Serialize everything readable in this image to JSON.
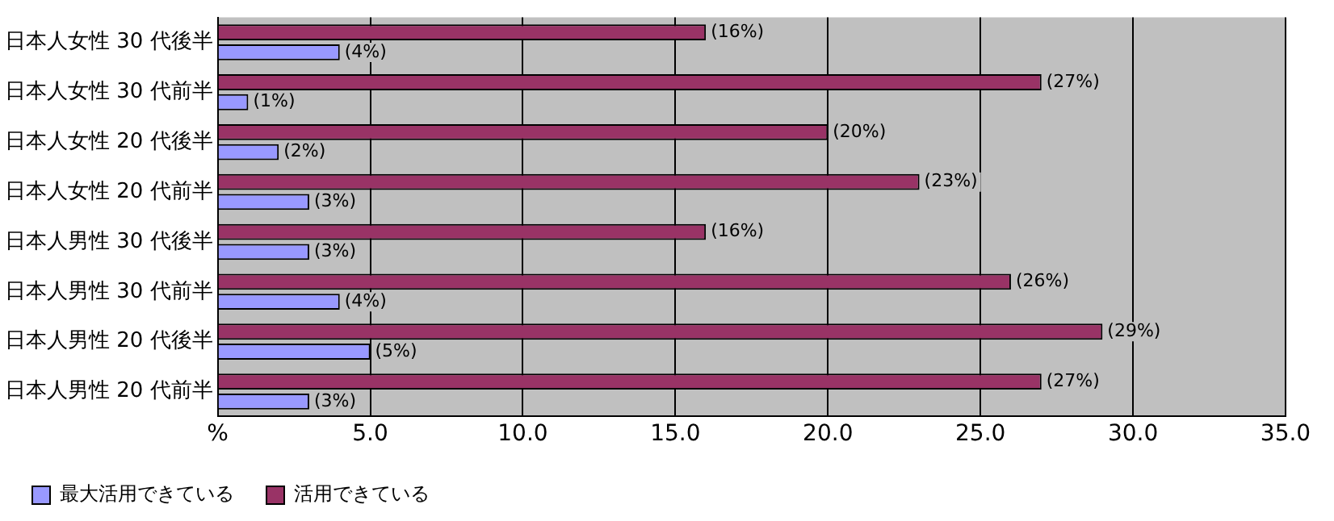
{
  "chart_data": {
    "type": "bar",
    "orientation": "horizontal",
    "categories": [
      "日本人女性 30 代後半",
      "日本人女性 30 代前半",
      "日本人女性 20 代後半",
      "日本人女性 20 代前半",
      "日本人男性 30 代後半",
      "日本人男性 30 代前半",
      "日本人男性 20 代後半",
      "日本人男性 20 代前半"
    ],
    "series": [
      {
        "name": "最大活用できている",
        "color": "#9999ff",
        "values": [
          4,
          1,
          2,
          3,
          3,
          4,
          5,
          3
        ],
        "value_labels": [
          "(4%)",
          "(1%)",
          "(2%)",
          "(3%)",
          "(3%)",
          "(4%)",
          "(5%)",
          "(3%)"
        ]
      },
      {
        "name": "活用できている",
        "color": "#993366",
        "values": [
          16,
          27,
          20,
          23,
          16,
          26,
          29,
          27
        ],
        "value_labels": [
          "(16%)",
          "(27%)",
          "(20%)",
          "(23%)",
          "(16%)",
          "(26%)",
          "(29%)",
          "(27%)"
        ]
      }
    ],
    "xlim": [
      0,
      35
    ],
    "xticks": [
      {
        "value": 0,
        "label": "%"
      },
      {
        "value": 5,
        "label": "5.0"
      },
      {
        "value": 10,
        "label": "10.0"
      },
      {
        "value": 15,
        "label": "15.0"
      },
      {
        "value": 20,
        "label": "20.0"
      },
      {
        "value": 25,
        "label": "25.0"
      },
      {
        "value": 30,
        "label": "30.0"
      },
      {
        "value": 35,
        "label": "35.0"
      }
    ],
    "grid": "x",
    "legend": "bottom left"
  }
}
